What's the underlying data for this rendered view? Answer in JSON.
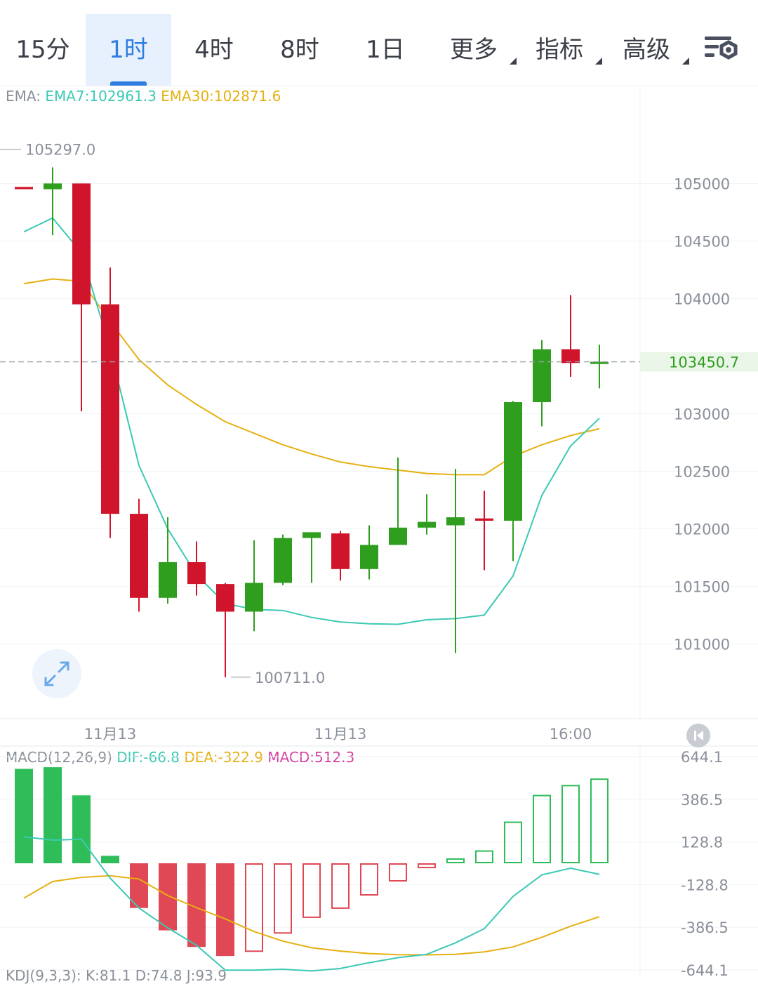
{
  "tabs": [
    {
      "label": "15分",
      "active": false,
      "dropdown": false
    },
    {
      "label": "1时",
      "active": true,
      "dropdown": false
    },
    {
      "label": "4时",
      "active": false,
      "dropdown": false
    },
    {
      "label": "8时",
      "active": false,
      "dropdown": false
    },
    {
      "label": "1日",
      "active": false,
      "dropdown": false
    },
    {
      "label": "更多",
      "active": false,
      "dropdown": true
    },
    {
      "label": "指标",
      "active": false,
      "dropdown": true
    },
    {
      "label": "高级",
      "active": false,
      "dropdown": true
    }
  ],
  "settings_icon": "chart-settings-icon",
  "ema_legend": {
    "prefix": "EMA:",
    "ema7": "EMA7:102961.3",
    "ema30": "EMA30:102871.6"
  },
  "macd_legend": {
    "prefix": "MACD(12,26,9)",
    "dif": "DIF:-66.8",
    "dea": "DEA:-322.9",
    "macd": "MACD:512.3"
  },
  "kdj_legend": "KDJ(9,3,3): K:81.1 D:74.8 J:93.9",
  "colors": {
    "up": "#2f9e1f",
    "down": "#d0142c",
    "ema7": "#3cc9b4",
    "ema30": "#e6b012",
    "macd_up": "#2ebd59",
    "macd_down": "#e04855",
    "price_tag": "#2f9e1f",
    "accent": "#2f7de1"
  },
  "chart_data": [
    {
      "type": "candlestick",
      "title": "",
      "x_tick_labels": [
        "11月13",
        "11月13",
        "16:00"
      ],
      "y_ticks": [
        105000,
        104500,
        104000,
        103000,
        102500,
        102000,
        101500,
        101000
      ],
      "ylim": [
        100350,
        105850
      ],
      "last_price": "103450.7",
      "high_label": "105297.0",
      "low_label": "100711.0",
      "candles": [
        {
          "o": 104970,
          "h": 104970,
          "l": 104970,
          "c": 104950
        },
        {
          "o": 104950,
          "h": 105140,
          "l": 104550,
          "c": 105000
        },
        {
          "o": 105000,
          "h": 105000,
          "l": 103020,
          "c": 103950
        },
        {
          "o": 103950,
          "h": 104270,
          "l": 101920,
          "c": 102130
        },
        {
          "o": 102130,
          "h": 102260,
          "l": 101280,
          "c": 101400
        },
        {
          "o": 101400,
          "h": 102100,
          "l": 101350,
          "c": 101710
        },
        {
          "o": 101710,
          "h": 101890,
          "l": 101420,
          "c": 101520
        },
        {
          "o": 101520,
          "h": 101530,
          "l": 100710,
          "c": 101280
        },
        {
          "o": 101280,
          "h": 101900,
          "l": 101110,
          "c": 101530
        },
        {
          "o": 101530,
          "h": 101950,
          "l": 101510,
          "c": 101920
        },
        {
          "o": 101920,
          "h": 101950,
          "l": 101530,
          "c": 101970
        },
        {
          "o": 101960,
          "h": 101980,
          "l": 101550,
          "c": 101650
        },
        {
          "o": 101650,
          "h": 102030,
          "l": 101560,
          "c": 101860
        },
        {
          "o": 101860,
          "h": 102620,
          "l": 101860,
          "c": 102010
        },
        {
          "o": 102010,
          "h": 102300,
          "l": 101950,
          "c": 102060
        },
        {
          "o": 102030,
          "h": 102520,
          "l": 100920,
          "c": 102100
        },
        {
          "o": 102090,
          "h": 102330,
          "l": 101640,
          "c": 102070
        },
        {
          "o": 102070,
          "h": 103110,
          "l": 101720,
          "c": 103100
        },
        {
          "o": 103100,
          "h": 103640,
          "l": 102890,
          "c": 103560
        },
        {
          "o": 103560,
          "h": 104030,
          "l": 103320,
          "c": 103440
        },
        {
          "o": 103440,
          "h": 103600,
          "l": 103220,
          "c": 103450
        }
      ],
      "ema7": [
        104580,
        104700,
        104400,
        103560,
        102550,
        102000,
        101600,
        101350,
        101300,
        101290,
        101230,
        101190,
        101175,
        101170,
        101210,
        101220,
        101250,
        101590,
        102290,
        102720,
        102960
      ],
      "ema30": [
        104130,
        104170,
        104150,
        103800,
        103470,
        103250,
        103080,
        102930,
        102830,
        102730,
        102650,
        102580,
        102540,
        102510,
        102480,
        102470,
        102470,
        102630,
        102730,
        102810,
        102870
      ]
    },
    {
      "type": "bar",
      "title": "MACD",
      "y_ticks": [
        "644.1",
        "386.5",
        "128.8",
        "-128.8",
        "-386.5",
        "-644.1"
      ],
      "ylim": [
        -644.1,
        644.1
      ],
      "histogram": [
        570,
        580,
        410,
        45,
        -270,
        -405,
        -505,
        -560,
        -535,
        -425,
        -330,
        -275,
        -195,
        -110,
        -30,
        30,
        78,
        252,
        413,
        473,
        512
      ],
      "dif": [
        160,
        140,
        145,
        -90,
        -270,
        -390,
        -495,
        -645,
        -645,
        -640,
        -650,
        -635,
        -600,
        -570,
        -550,
        -480,
        -395,
        -200,
        -70,
        -30,
        -66.8
      ],
      "dea": [
        -210,
        -110,
        -85,
        -75,
        -95,
        -195,
        -268,
        -336,
        -412,
        -470,
        -510,
        -530,
        -545,
        -552,
        -553,
        -550,
        -535,
        -505,
        -447,
        -380,
        -322.9
      ]
    }
  ]
}
